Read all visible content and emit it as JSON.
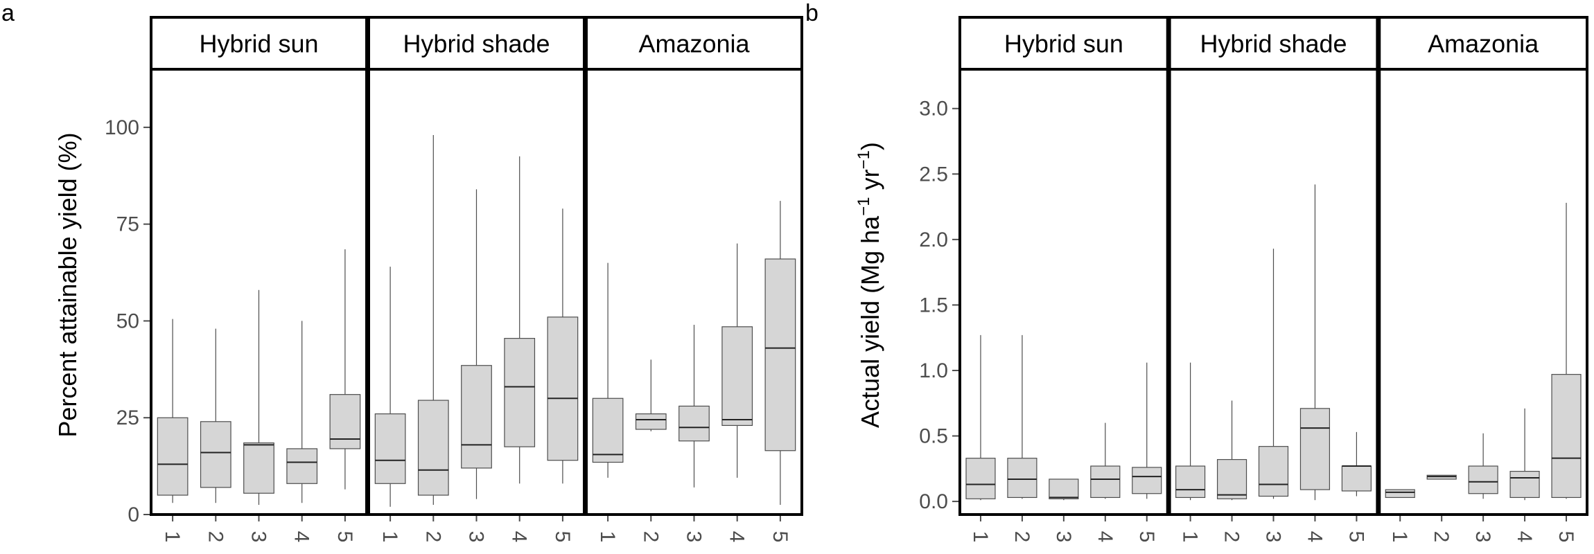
{
  "panel_labels": [
    "a",
    "b"
  ],
  "chart_data": [
    {
      "type": "box",
      "panel": "a",
      "ylabel": "Percent attainable yield (%)",
      "ylim": [
        0,
        115
      ],
      "yticks": [
        0,
        25,
        50,
        75,
        100
      ],
      "ytick_labels": [
        "0",
        "25",
        "50",
        "75",
        "100"
      ],
      "categories": [
        "1",
        "2",
        "3",
        "4",
        "5"
      ],
      "grid": false,
      "facets": [
        {
          "name": "Hybrid sun",
          "boxes": [
            {
              "x": "1",
              "min": 3,
              "q1": 5,
              "median": 13,
              "q3": 25,
              "max": 50.5
            },
            {
              "x": "2",
              "min": 3,
              "q1": 7,
              "median": 16,
              "q3": 24,
              "max": 48
            },
            {
              "x": "3",
              "min": 2.5,
              "q1": 5.5,
              "median": 18,
              "q3": 18.5,
              "max": 58
            },
            {
              "x": "4",
              "min": 3,
              "q1": 8,
              "median": 13.5,
              "q3": 17,
              "max": 50
            },
            {
              "x": "5",
              "min": 6.5,
              "q1": 17,
              "median": 19.5,
              "q3": 31,
              "max": 68.5
            }
          ]
        },
        {
          "name": "Hybrid shade",
          "boxes": [
            {
              "x": "1",
              "min": 2,
              "q1": 8,
              "median": 14,
              "q3": 26,
              "max": 64
            },
            {
              "x": "2",
              "min": 2.5,
              "q1": 5,
              "median": 11.5,
              "q3": 29.5,
              "max": 98
            },
            {
              "x": "3",
              "min": 4,
              "q1": 12,
              "median": 18,
              "q3": 38.5,
              "max": 84
            },
            {
              "x": "4",
              "min": 8,
              "q1": 17.5,
              "median": 33,
              "q3": 45.5,
              "max": 92.5
            },
            {
              "x": "5",
              "min": 8,
              "q1": 14,
              "median": 30,
              "q3": 51,
              "max": 79
            }
          ]
        },
        {
          "name": "Amazonia",
          "boxes": [
            {
              "x": "1",
              "min": 9.5,
              "q1": 13.5,
              "median": 15.5,
              "q3": 30,
              "max": 65
            },
            {
              "x": "2",
              "min": 21.5,
              "q1": 22,
              "median": 24.5,
              "q3": 26,
              "max": 40
            },
            {
              "x": "3",
              "min": 7,
              "q1": 19,
              "median": 22.5,
              "q3": 28,
              "max": 49
            },
            {
              "x": "4",
              "min": 9.5,
              "q1": 23,
              "median": 24.5,
              "q3": 48.5,
              "max": 70
            },
            {
              "x": "5",
              "min": 2.5,
              "q1": 16.5,
              "median": 43,
              "q3": 66,
              "max": 81
            }
          ]
        }
      ]
    },
    {
      "type": "box",
      "panel": "b",
      "ylabel": "Actual yield (Mg ha",
      "ylabel_sup1": "−1",
      "ylabel_mid": " yr",
      "ylabel_sup2": "−1",
      "ylabel_end": ")",
      "ylim": [
        -0.1,
        3.3
      ],
      "yticks": [
        0,
        0.5,
        1,
        1.5,
        2,
        2.5,
        3
      ],
      "ytick_labels": [
        "0.0",
        "0.5",
        "1.0",
        "1.5",
        "2.0",
        "2.5",
        "3.0"
      ],
      "categories": [
        "1",
        "2",
        "3",
        "4",
        "5"
      ],
      "grid": false,
      "facets": [
        {
          "name": "Hybrid sun",
          "boxes": [
            {
              "x": "1",
              "min": 0.01,
              "q1": 0.02,
              "median": 0.13,
              "q3": 0.33,
              "max": 1.27
            },
            {
              "x": "2",
              "min": 0.02,
              "q1": 0.03,
              "median": 0.17,
              "q3": 0.33,
              "max": 1.27
            },
            {
              "x": "3",
              "min": 0.01,
              "q1": 0.02,
              "median": 0.03,
              "q3": 0.17,
              "max": 0.17
            },
            {
              "x": "4",
              "min": 0.02,
              "q1": 0.03,
              "median": 0.17,
              "q3": 0.27,
              "max": 0.6
            },
            {
              "x": "5",
              "min": 0.02,
              "q1": 0.06,
              "median": 0.19,
              "q3": 0.26,
              "max": 1.06
            }
          ]
        },
        {
          "name": "Hybrid shade",
          "boxes": [
            {
              "x": "1",
              "min": 0.01,
              "q1": 0.03,
              "median": 0.09,
              "q3": 0.27,
              "max": 1.06
            },
            {
              "x": "2",
              "min": 0.01,
              "q1": 0.02,
              "median": 0.05,
              "q3": 0.32,
              "max": 0.77
            },
            {
              "x": "3",
              "min": 0.02,
              "q1": 0.04,
              "median": 0.13,
              "q3": 0.42,
              "max": 1.93
            },
            {
              "x": "4",
              "min": 0.01,
              "q1": 0.09,
              "median": 0.56,
              "q3": 0.71,
              "max": 2.42
            },
            {
              "x": "5",
              "min": 0.04,
              "q1": 0.08,
              "median": 0.27,
              "q3": 0.27,
              "max": 0.53
            }
          ]
        },
        {
          "name": "Amazonia",
          "boxes": [
            {
              "x": "1",
              "min": 0.03,
              "q1": 0.03,
              "median": 0.07,
              "q3": 0.09,
              "max": 0.09
            },
            {
              "x": "2",
              "min": 0.17,
              "q1": 0.17,
              "median": 0.19,
              "q3": 0.2,
              "max": 0.2
            },
            {
              "x": "3",
              "min": 0.02,
              "q1": 0.06,
              "median": 0.15,
              "q3": 0.27,
              "max": 0.52
            },
            {
              "x": "4",
              "min": 0.01,
              "q1": 0.03,
              "median": 0.18,
              "q3": 0.23,
              "max": 0.71
            },
            {
              "x": "5",
              "min": 0.02,
              "q1": 0.03,
              "median": 0.33,
              "q3": 0.97,
              "max": 2.28
            }
          ]
        }
      ]
    }
  ],
  "colors": {
    "box_fill": "#d6d6d6",
    "box_stroke": "#4d4d4d",
    "frame": "#000000",
    "tick_text": "#4d4d4d"
  }
}
